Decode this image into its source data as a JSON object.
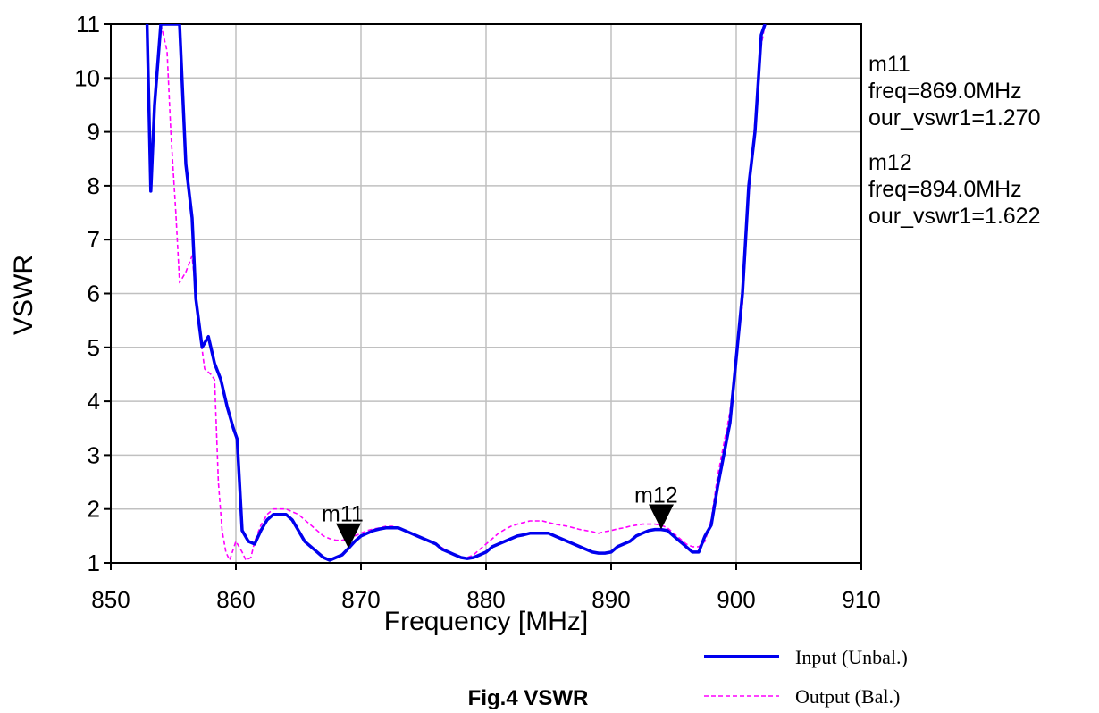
{
  "chart_data": {
    "type": "line",
    "title": "",
    "caption": "Fig.4 VSWR",
    "xlabel": "Frequency [MHz]",
    "ylabel": "VSWR",
    "xlim": [
      850,
      910
    ],
    "ylim": [
      1,
      11
    ],
    "xticks": [
      "850",
      "860",
      "870",
      "880",
      "890",
      "900",
      "910"
    ],
    "yticks": [
      "1",
      "2",
      "3",
      "4",
      "5",
      "6",
      "7",
      "8",
      "9",
      "10",
      "11"
    ],
    "grid": true,
    "legend_position": "bottom-right",
    "series": [
      {
        "name": "Input (Unbal.)",
        "color": "#0000ee",
        "style": "solid",
        "x": [
          852.9,
          853.2,
          853.5,
          854.0,
          854.3,
          855.0,
          855.5,
          856.0,
          856.5,
          856.8,
          857.3,
          857.8,
          858.3,
          858.8,
          859.3,
          859.8,
          860.1,
          860.5,
          861.0,
          861.5,
          862.0,
          862.5,
          863.0,
          863.5,
          864.0,
          864.5,
          865.0,
          865.5,
          866.0,
          866.5,
          867.0,
          867.5,
          868.0,
          868.5,
          869.0,
          869.5,
          870.0,
          870.5,
          871.0,
          871.5,
          872.0,
          872.5,
          873.0,
          873.5,
          874.0,
          874.5,
          875.0,
          875.5,
          876.0,
          876.5,
          877.0,
          877.5,
          878.0,
          878.5,
          879.0,
          879.5,
          880.0,
          880.5,
          881.0,
          881.5,
          882.0,
          882.5,
          883.0,
          883.5,
          884.0,
          884.5,
          885.0,
          885.5,
          886.0,
          886.5,
          887.0,
          887.5,
          888.0,
          888.5,
          889.0,
          889.5,
          890.0,
          890.5,
          891.0,
          891.5,
          892.0,
          892.5,
          893.0,
          893.5,
          894.0,
          894.5,
          895.0,
          895.5,
          896.0,
          896.5,
          897.0,
          897.5,
          898.0,
          898.5,
          899.0,
          899.5,
          900.0,
          900.5,
          901.0,
          901.5,
          902.0,
          902.3
        ],
        "y": [
          11.0,
          7.9,
          9.5,
          11.0,
          11.0,
          11.0,
          11.0,
          8.4,
          7.4,
          5.9,
          5.0,
          5.2,
          4.7,
          4.4,
          3.9,
          3.5,
          3.3,
          1.6,
          1.4,
          1.35,
          1.6,
          1.8,
          1.9,
          1.9,
          1.9,
          1.8,
          1.6,
          1.4,
          1.3,
          1.2,
          1.1,
          1.05,
          1.1,
          1.15,
          1.27,
          1.4,
          1.5,
          1.55,
          1.6,
          1.63,
          1.65,
          1.65,
          1.65,
          1.6,
          1.55,
          1.5,
          1.45,
          1.4,
          1.35,
          1.25,
          1.2,
          1.15,
          1.1,
          1.08,
          1.1,
          1.15,
          1.2,
          1.3,
          1.35,
          1.4,
          1.45,
          1.5,
          1.52,
          1.55,
          1.55,
          1.55,
          1.55,
          1.5,
          1.45,
          1.4,
          1.35,
          1.3,
          1.25,
          1.2,
          1.18,
          1.18,
          1.2,
          1.3,
          1.35,
          1.4,
          1.5,
          1.55,
          1.6,
          1.62,
          1.62,
          1.6,
          1.5,
          1.4,
          1.3,
          1.2,
          1.2,
          1.5,
          1.7,
          2.4,
          3.0,
          3.6,
          4.8,
          6.0,
          8.0,
          9.0,
          10.8,
          11.0
        ]
      },
      {
        "name": "Output (Bal.)",
        "color": "#ff00ff",
        "style": "dashed",
        "x": [
          854.0,
          854.5,
          854.8,
          855.2,
          855.5,
          856.0,
          856.5,
          857.0,
          857.5,
          858.0,
          858.3,
          858.6,
          858.9,
          859.2,
          859.5,
          860.0,
          860.5,
          860.8,
          861.2,
          861.5,
          862.0,
          862.5,
          863.0,
          863.5,
          864.0,
          864.5,
          865.0,
          865.5,
          866.0,
          866.5,
          867.0,
          867.5,
          868.0,
          868.5,
          869.0,
          869.5,
          870.0,
          870.5,
          871.0,
          871.5,
          872.0,
          872.5,
          873.0,
          873.5,
          874.0,
          874.5,
          875.0,
          875.5,
          876.0,
          876.5,
          877.0,
          877.5,
          878.0,
          878.5,
          879.0,
          879.5,
          880.0,
          880.5,
          881.0,
          881.5,
          882.0,
          882.5,
          883.0,
          883.5,
          884.0,
          884.5,
          885.0,
          885.5,
          886.0,
          886.5,
          887.0,
          887.5,
          888.0,
          888.5,
          889.0,
          889.5,
          890.0,
          890.5,
          891.0,
          891.5,
          892.0,
          892.5,
          893.0,
          893.5,
          894.0,
          894.5,
          895.0,
          895.5,
          896.0,
          896.5,
          897.0,
          897.5,
          898.0,
          898.5,
          899.0,
          899.5,
          900.0,
          900.5,
          901.0,
          901.5,
          902.0,
          902.3
        ],
        "y": [
          11.0,
          10.5,
          9.0,
          7.5,
          6.2,
          6.4,
          6.7,
          5.5,
          4.6,
          4.5,
          4.4,
          2.5,
          1.6,
          1.2,
          1.05,
          1.4,
          1.2,
          1.05,
          1.1,
          1.4,
          1.7,
          1.9,
          2.0,
          2.0,
          2.0,
          1.95,
          1.9,
          1.8,
          1.7,
          1.6,
          1.5,
          1.45,
          1.42,
          1.42,
          1.45,
          1.5,
          1.55,
          1.6,
          1.63,
          1.65,
          1.68,
          1.68,
          1.65,
          1.6,
          1.55,
          1.5,
          1.45,
          1.4,
          1.35,
          1.28,
          1.2,
          1.15,
          1.1,
          1.1,
          1.15,
          1.25,
          1.35,
          1.45,
          1.55,
          1.62,
          1.68,
          1.72,
          1.75,
          1.78,
          1.78,
          1.78,
          1.75,
          1.72,
          1.7,
          1.68,
          1.65,
          1.62,
          1.6,
          1.58,
          1.55,
          1.58,
          1.6,
          1.63,
          1.65,
          1.68,
          1.7,
          1.72,
          1.72,
          1.72,
          1.7,
          1.65,
          1.55,
          1.45,
          1.35,
          1.3,
          1.3,
          1.4,
          1.8,
          2.6,
          3.2,
          3.8,
          4.8,
          5.8,
          7.8,
          9.2,
          10.6,
          11.0
        ]
      }
    ],
    "markers": [
      {
        "name": "m11",
        "series": "Input (Unbal.)",
        "x": 869.0,
        "y": 1.27,
        "readout": [
          "m11",
          "freq=869.0MHz",
          "our_vswr1=1.270"
        ]
      },
      {
        "name": "m12",
        "series": "Input (Unbal.)",
        "x": 894.0,
        "y": 1.622,
        "readout": [
          "m12",
          "freq=894.0MHz",
          "our_vswr1=1.622"
        ]
      }
    ]
  }
}
